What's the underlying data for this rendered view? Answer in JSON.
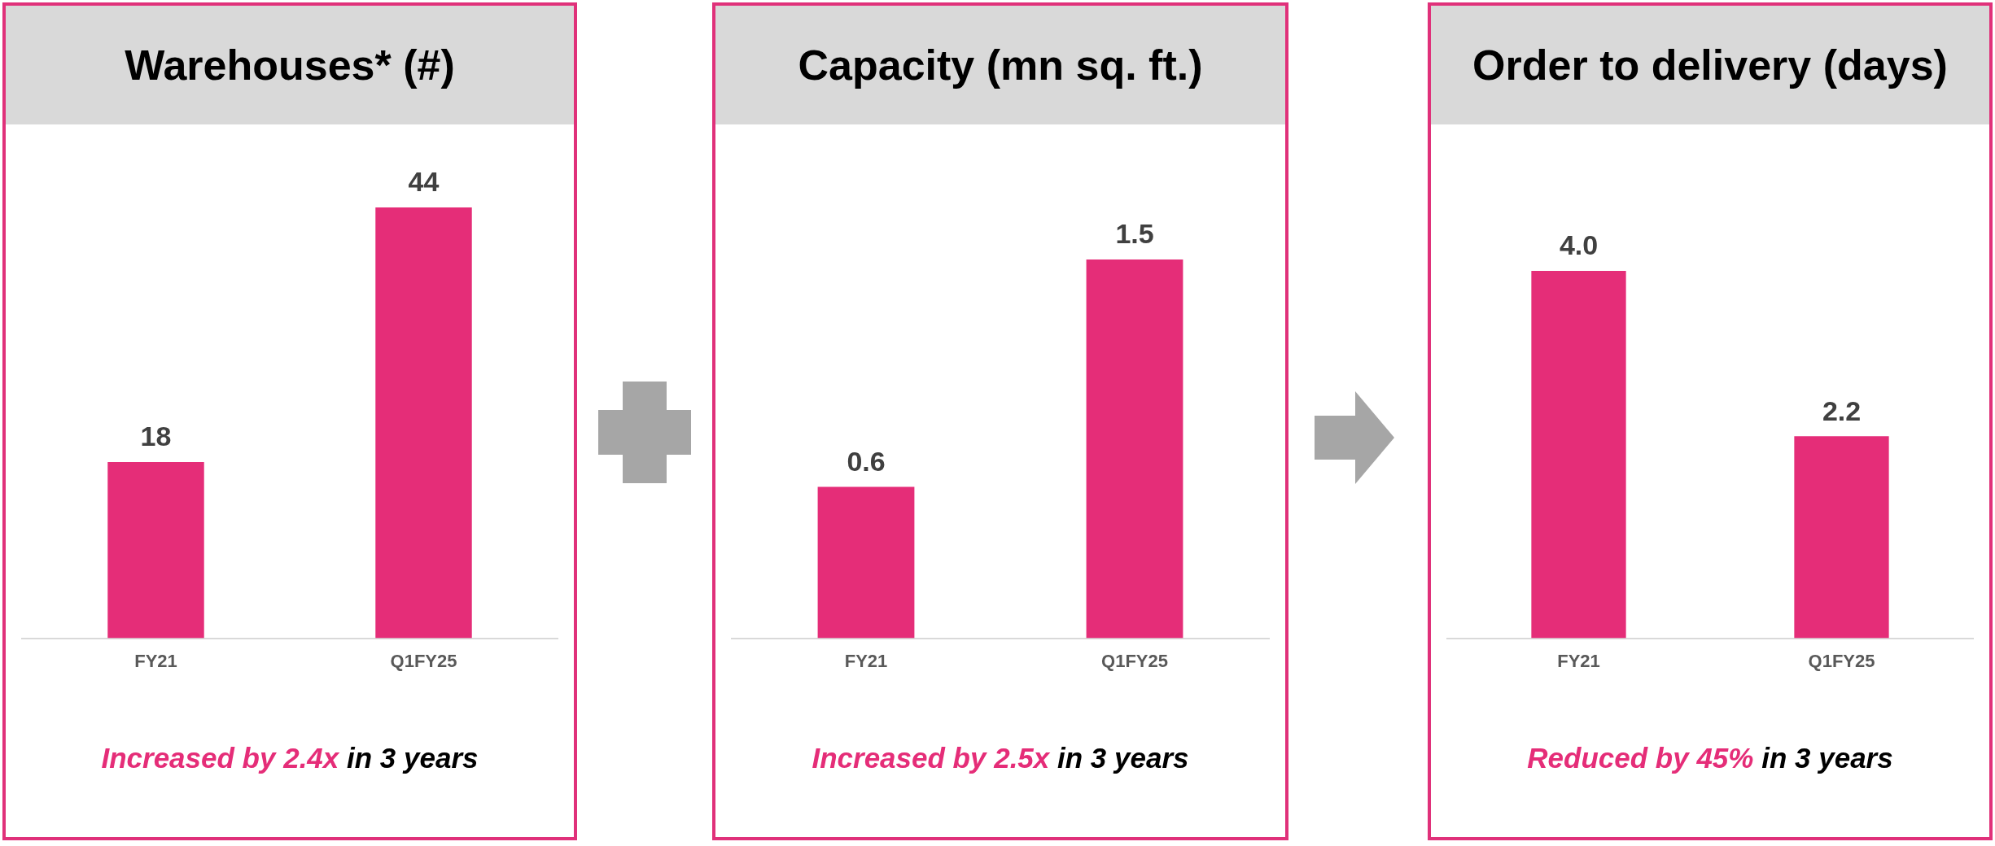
{
  "chart_data": [
    {
      "type": "bar",
      "title": "Warehouses* (#)",
      "categories": [
        "FY21",
        "Q1FY25"
      ],
      "values": [
        18,
        44
      ],
      "color": "#e52d78",
      "tick_labels": "x",
      "data_labels": true,
      "grid": false,
      "legend": false,
      "annotations": [
        "Increased by 2.4x",
        "in 3 years"
      ]
    },
    {
      "type": "bar",
      "title": "Capacity (mn sq. ft.)",
      "categories": [
        "FY21",
        "Q1FY25"
      ],
      "values": [
        0.6,
        1.5
      ],
      "color": "#e52d78",
      "tick_labels": "x",
      "data_labels": true,
      "grid": false,
      "legend": false,
      "annotations": [
        "Increased by 2.5x",
        "in 3 years"
      ]
    },
    {
      "type": "bar",
      "title": "Order to delivery (days)",
      "categories": [
        "FY21",
        "Q1FY25"
      ],
      "values": [
        4.0,
        2.2
      ],
      "value_labels": [
        "4.0",
        "2.2"
      ],
      "color": "#e52d78",
      "tick_labels": "x",
      "grid": false,
      "legend": false,
      "annotations": [
        "Reduced by 45%",
        "in 3 years"
      ]
    }
  ]
}
